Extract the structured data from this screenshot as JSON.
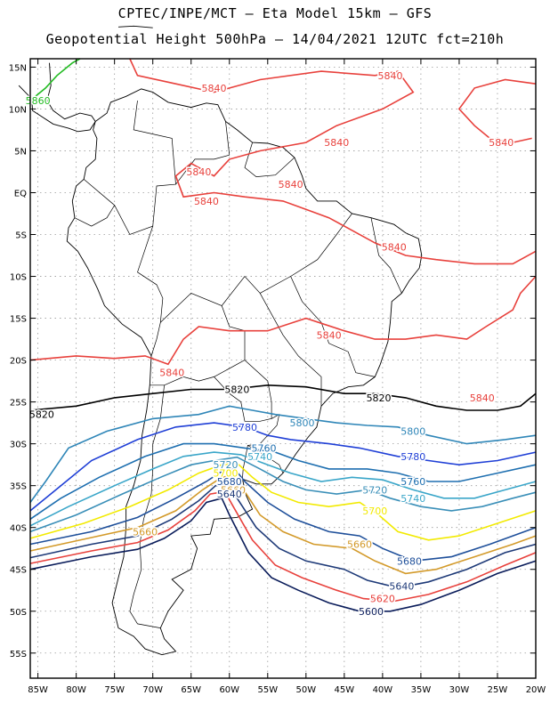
{
  "title_line1": "CPTEC/INPE/MCT –  Eta Model 15km – GFS",
  "title_line2": "Geopotential Height 500hPa – 14/04/2021 12UTC fct=210h",
  "lat_ticks": [
    "15N",
    "10N",
    "5N",
    "EQ",
    "5S",
    "10S",
    "15S",
    "20S",
    "25S",
    "30S",
    "35S",
    "40S",
    "45S",
    "50S",
    "55S"
  ],
  "lon_ticks": [
    "85W",
    "80W",
    "75W",
    "70W",
    "65W",
    "60W",
    "55W",
    "50W",
    "45W",
    "40W",
    "35W",
    "30W",
    "25W",
    "20W"
  ],
  "map_extent": {
    "lon": [
      -86,
      -20
    ],
    "lat": [
      -58,
      16
    ]
  },
  "colors": {
    "5840": "#e8413c",
    "5820": "#000000",
    "5800": "#2f86b8",
    "5780": "#1f3fd6",
    "5760": "#1e6fb0",
    "5740": "#3aa6c9",
    "5720": "#3a8fb8",
    "5700": "#f2ea00",
    "5660": "#d39a2a",
    "5680": "#1e4f9a",
    "5640": "#1e3a78",
    "5620": "#e8413c",
    "5600": "#0a1c5a",
    "5860": "#22bb22",
    "coast": "#000000"
  },
  "contour_labels": [
    {
      "text": "5840",
      "lon": -39,
      "lat": 14,
      "color": "#e8413c"
    },
    {
      "text": "5840",
      "lon": -62,
      "lat": 12.5,
      "color": "#e8413c"
    },
    {
      "text": "5840",
      "lon": -46,
      "lat": 6,
      "color": "#e8413c"
    },
    {
      "text": "5840",
      "lon": -24.5,
      "lat": 6,
      "color": "#e8413c"
    },
    {
      "text": "5840",
      "lon": -64,
      "lat": 2.5,
      "color": "#e8413c"
    },
    {
      "text": "5840",
      "lon": -52,
      "lat": 1,
      "color": "#e8413c"
    },
    {
      "text": "5840",
      "lon": -63,
      "lat": -1,
      "color": "#e8413c"
    },
    {
      "text": "5840",
      "lon": -38.5,
      "lat": -6.5,
      "color": "#e8413c"
    },
    {
      "text": "5840",
      "lon": -47,
      "lat": -17,
      "color": "#e8413c"
    },
    {
      "text": "5840",
      "lon": -67.5,
      "lat": -21.5,
      "color": "#e8413c"
    },
    {
      "text": "5840",
      "lon": -27,
      "lat": -24.5,
      "color": "#e8413c"
    },
    {
      "text": "5820",
      "lon": -59,
      "lat": -23.5,
      "color": "#000000"
    },
    {
      "text": "5820",
      "lon": -40.5,
      "lat": -24.5,
      "color": "#000000"
    },
    {
      "text": "5820",
      "lon": -84.5,
      "lat": -26.5,
      "color": "#000000"
    },
    {
      "text": "5800",
      "lon": -50.5,
      "lat": -27.5,
      "color": "#2f86b8"
    },
    {
      "text": "5800",
      "lon": -36,
      "lat": -28.5,
      "color": "#2f86b8"
    },
    {
      "text": "5780",
      "lon": -58,
      "lat": -28,
      "color": "#1f3fd6"
    },
    {
      "text": "5780",
      "lon": -36,
      "lat": -31.5,
      "color": "#1f3fd6"
    },
    {
      "text": "5760",
      "lon": -55.5,
      "lat": -30.5,
      "color": "#1e6fb0"
    },
    {
      "text": "5760",
      "lon": -36,
      "lat": -34.5,
      "color": "#1e6fb0"
    },
    {
      "text": "5740",
      "lon": -56,
      "lat": -31.5,
      "color": "#3aa6c9"
    },
    {
      "text": "5740",
      "lon": -36,
      "lat": -36.5,
      "color": "#3aa6c9"
    },
    {
      "text": "5720",
      "lon": -60.5,
      "lat": -32.5,
      "color": "#3a8fb8"
    },
    {
      "text": "5720",
      "lon": -41,
      "lat": -35.5,
      "color": "#3a8fb8"
    },
    {
      "text": "5700",
      "lon": -60.5,
      "lat": -33.5,
      "color": "#f2ea00"
    },
    {
      "text": "5700",
      "lon": -41,
      "lat": -38,
      "color": "#f2ea00"
    },
    {
      "text": "5680",
      "lon": -60,
      "lat": -34.5,
      "color": "#1e4f9a"
    },
    {
      "text": "5680",
      "lon": -36.5,
      "lat": -44,
      "color": "#1e4f9a"
    },
    {
      "text": "5660",
      "lon": -59.5,
      "lat": -35.5,
      "color": "#d39a2a"
    },
    {
      "text": "5660",
      "lon": -71,
      "lat": -40.5,
      "color": "#d39a2a"
    },
    {
      "text": "5660",
      "lon": -43,
      "lat": -42,
      "color": "#d39a2a"
    },
    {
      "text": "5640",
      "lon": -60,
      "lat": -36,
      "color": "#1e3a78"
    },
    {
      "text": "5640",
      "lon": -37.5,
      "lat": -47,
      "color": "#1e3a78"
    },
    {
      "text": "5620",
      "lon": -40,
      "lat": -48.5,
      "color": "#e8413c"
    },
    {
      "text": "5600",
      "lon": -41.5,
      "lat": -50,
      "color": "#0a1c5a"
    },
    {
      "text": "5860",
      "lon": -85,
      "lat": 11,
      "color": "#22bb22"
    }
  ]
}
